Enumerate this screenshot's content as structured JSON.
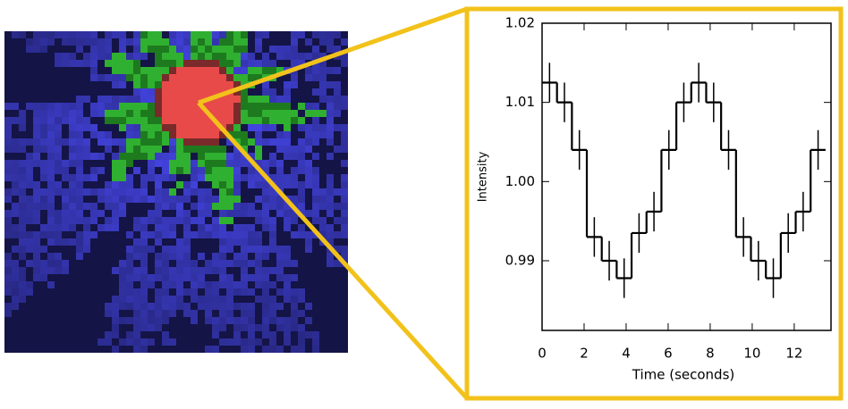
{
  "chart_data": {
    "type": "step",
    "xlabel": "Time (seconds)",
    "ylabel": "Intensity",
    "x": [
      0,
      0.71,
      1.42,
      2.13,
      2.84,
      3.55,
      4.26,
      4.97,
      5.68,
      6.39,
      7.1,
      7.81,
      8.52,
      9.23,
      9.94,
      10.65,
      11.36,
      12.07,
      12.78
    ],
    "values": [
      1.0125,
      1.01,
      1.004,
      0.993,
      0.99,
      0.9878,
      0.9935,
      0.9962,
      1.004,
      1.01,
      1.0125,
      1.01,
      1.004,
      0.993,
      0.99,
      0.9878,
      0.9935,
      0.9962,
      1.004
    ],
    "errors": [
      0.0025,
      0.0025,
      0.0025,
      0.0025,
      0.0025,
      0.0025,
      0.0025,
      0.0025,
      0.0025,
      0.0025,
      0.0025,
      0.0025,
      0.0025,
      0.0025,
      0.0025,
      0.0025,
      0.0025,
      0.0025,
      0.0025
    ],
    "step_end": 13.49,
    "color": "#000000",
    "xlim": [
      0,
      13.75
    ],
    "ylim": [
      0.9812,
      1.02
    ],
    "xticks": [
      0,
      2,
      4,
      6,
      8,
      10,
      12
    ],
    "yticks": [
      {
        "value": 0.99,
        "label": "0.99"
      },
      {
        "value": 1.0,
        "label": "1.00"
      },
      {
        "value": 1.01,
        "label": "1.01"
      },
      {
        "value": 1.02,
        "label": "1.02"
      }
    ]
  }
}
